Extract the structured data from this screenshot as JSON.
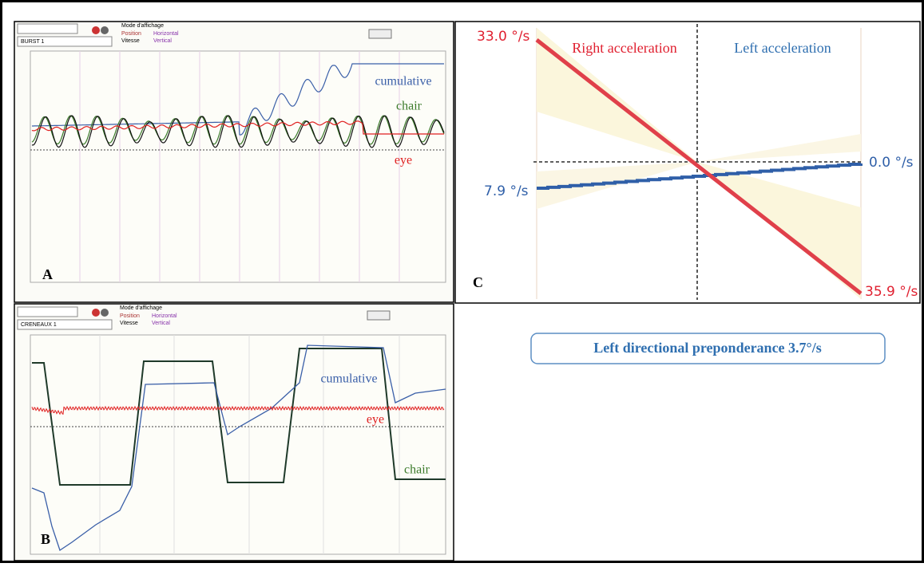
{
  "panel_a": {
    "letter": "A",
    "preset": "BURST 1",
    "mode_label": "Mode d'affichage",
    "options": [
      "Position",
      "Horizontal",
      "Vitesse",
      "Vertical"
    ],
    "traces": {
      "cumulative": "cumulative",
      "chair": "chair",
      "eye": "eye"
    }
  },
  "panel_b": {
    "letter": "B",
    "preset": "CRENEAUX 1",
    "mode_label": "Mode d'affichage",
    "options": [
      "Position",
      "Horizontal",
      "Vitesse",
      "Vertical"
    ],
    "traces": {
      "cumulative": "cumulative",
      "chair": "chair",
      "eye": "eye"
    }
  },
  "panel_c": {
    "letter": "C",
    "left_title": "Right acceleration",
    "right_title": "Left acceleration",
    "top_left": "33.0 °/s",
    "mid_left": "7.9 °/s",
    "mid_right": "0.0 °/s",
    "bottom_right": "35.9 °/s"
  },
  "caption": "Left directional preponderance 3.7°/s"
}
